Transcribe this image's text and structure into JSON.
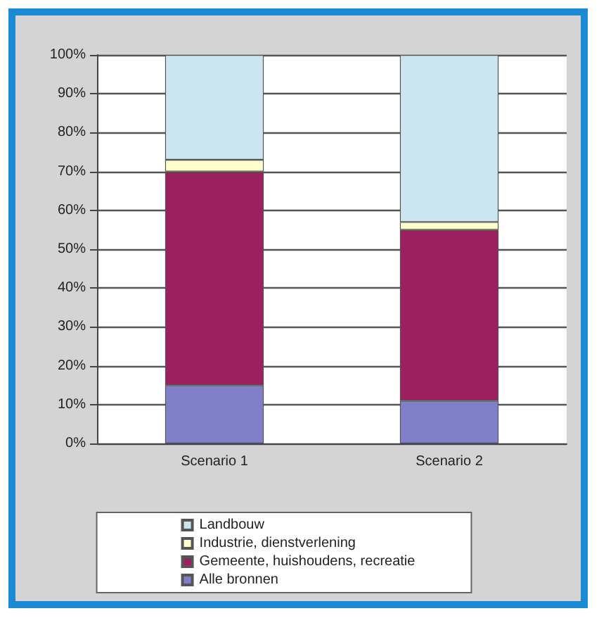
{
  "chart_data": {
    "type": "bar",
    "stacked": true,
    "categories": [
      "Scenario 1",
      "Scenario 2"
    ],
    "series": [
      {
        "name": "Alle bronnen",
        "color": "#8080c8",
        "values": [
          15,
          11
        ]
      },
      {
        "name": "Gemeente, huishoudens, recreatie",
        "color": "#9c2060",
        "values": [
          55,
          44
        ]
      },
      {
        "name": "Industrie, dienstverlening",
        "color": "#ffffcc",
        "values": [
          3,
          2
        ]
      },
      {
        "name": "Landbouw",
        "color": "#cce6f0",
        "values": [
          27,
          43
        ]
      }
    ],
    "ylim": [
      0,
      100
    ],
    "yticks": [
      {
        "value": 0,
        "label": "0%"
      },
      {
        "value": 10,
        "label": "10%"
      },
      {
        "value": 20,
        "label": "20%"
      },
      {
        "value": 30,
        "label": "30%"
      },
      {
        "value": 40,
        "label": "40%"
      },
      {
        "value": 50,
        "label": "50%"
      },
      {
        "value": 60,
        "label": "60%"
      },
      {
        "value": 70,
        "label": "70%"
      },
      {
        "value": 80,
        "label": "80%"
      },
      {
        "value": 90,
        "label": "90%"
      },
      {
        "value": 100,
        "label": "100%"
      }
    ],
    "grid": "y",
    "legend": "bottom"
  }
}
